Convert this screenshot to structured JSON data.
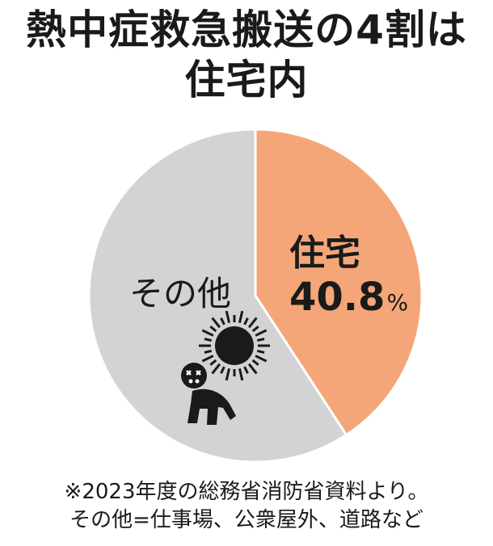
{
  "title": {
    "line1": "熱中症救急搬送の4割は",
    "line2": "住宅内"
  },
  "chart_data": {
    "type": "pie",
    "slices": [
      {
        "label": "住宅",
        "value": 40.8,
        "unit": "%",
        "color": "#f4a679"
      },
      {
        "label": "その他",
        "value": 59.2,
        "color": "#d3d3d5"
      }
    ]
  },
  "labels": {
    "house_name": "住宅",
    "house_value": "40.8",
    "house_unit": "%",
    "other_name": "その他"
  },
  "icon": "heatstroke-person-under-sun-icon",
  "footnote": {
    "line1": "※2023年度の総務省消防省資料より。",
    "line2": "その他=仕事場、公衆屋外、道路など"
  }
}
